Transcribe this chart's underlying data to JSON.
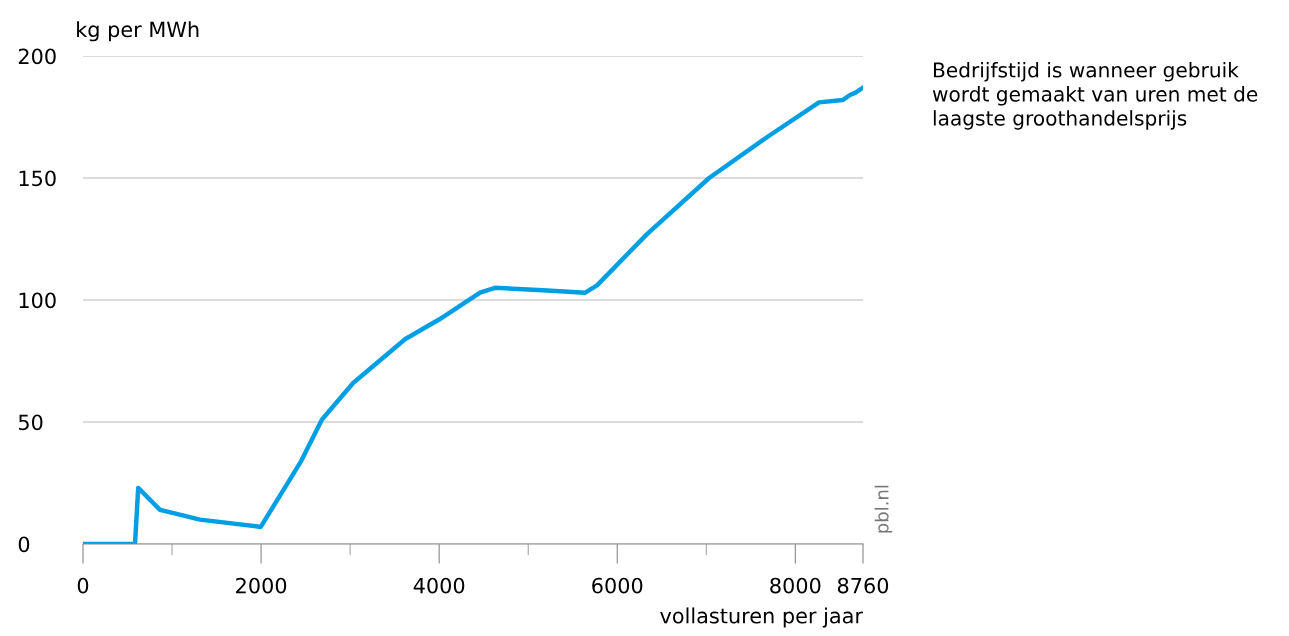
{
  "chart_data": {
    "type": "line",
    "ylabel": "kg per MWh",
    "xlabel": "vollasturen per jaar",
    "annotations": [
      "Bedrijfstijd is wanneer gebruik wordt gemaakt van uren met de laagste groothandelsprijs",
      "pbl.nl"
    ],
    "x": [
      0,
      584,
      620,
      865,
      1314,
      1996,
      2450,
      2684,
      3034,
      3620,
      3999,
      4459,
      4627,
      5165,
      5640,
      5773,
      6334,
      7032,
      7693,
      8266,
      8535,
      8614,
      8676,
      8760
    ],
    "series": [
      {
        "color": "#009fe3",
        "values": [
          0,
          0,
          23,
          14,
          10,
          7,
          34,
          51,
          66,
          84,
          92,
          103,
          105,
          104,
          103,
          106,
          127,
          150,
          167,
          181,
          182,
          184,
          185,
          187
        ]
      }
    ],
    "xlim": [
      0,
      8760
    ],
    "xticks": [
      0,
      {
        "value": 1000,
        "label": null
      },
      2000,
      {
        "value": 3000,
        "label": null
      },
      4000,
      {
        "value": 5000,
        "label": null
      },
      6000,
      {
        "value": 7000,
        "label": null
      },
      8000,
      8760
    ],
    "ylim": [
      0,
      200
    ],
    "yticks": [
      0,
      50,
      100,
      150,
      200
    ],
    "grid": "y",
    "legend": false,
    "marker": "none",
    "line_style": "solid"
  }
}
